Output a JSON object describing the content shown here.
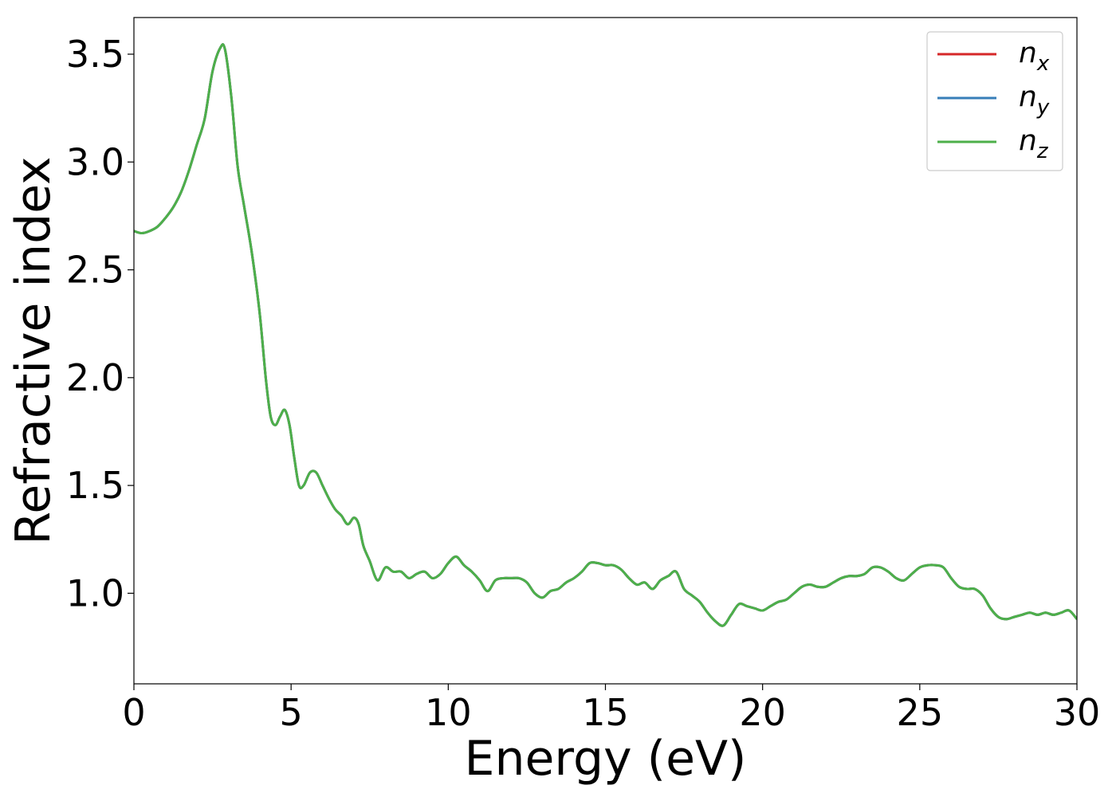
{
  "chart_data": {
    "type": "line",
    "xlabel": "Energy (eV)",
    "ylabel": "Refractive index",
    "xlim": [
      0,
      30
    ],
    "ylim": [
      0.58,
      3.67
    ],
    "xticks": [
      0,
      5,
      10,
      15,
      20,
      25,
      30
    ],
    "xtick_labels": [
      "0",
      "5",
      "10",
      "15",
      "20",
      "25",
      "30"
    ],
    "yticks": [
      1.0,
      1.5,
      2.0,
      2.5,
      3.0,
      3.5
    ],
    "ytick_labels": [
      "1.0",
      "1.5",
      "2.0",
      "2.5",
      "3.0",
      "3.5"
    ],
    "grid": false,
    "legend_position": "top-right",
    "x": [
      0.0,
      0.25,
      0.5,
      0.75,
      1.0,
      1.25,
      1.5,
      1.75,
      2.0,
      2.25,
      2.5,
      2.75,
      2.9,
      3.1,
      3.3,
      3.5,
      3.75,
      4.0,
      4.2,
      4.35,
      4.5,
      4.65,
      4.8,
      4.95,
      5.1,
      5.25,
      5.4,
      5.6,
      5.8,
      6.0,
      6.2,
      6.4,
      6.6,
      6.8,
      7.0,
      7.15,
      7.3,
      7.5,
      7.75,
      8.0,
      8.25,
      8.5,
      8.75,
      9.0,
      9.25,
      9.5,
      9.75,
      10.0,
      10.25,
      10.5,
      10.75,
      11.0,
      11.25,
      11.5,
      11.75,
      12.0,
      12.25,
      12.5,
      12.75,
      13.0,
      13.25,
      13.5,
      13.75,
      14.0,
      14.25,
      14.5,
      14.75,
      15.0,
      15.25,
      15.5,
      15.75,
      16.0,
      16.25,
      16.5,
      16.75,
      17.0,
      17.25,
      17.5,
      17.75,
      18.0,
      18.25,
      18.5,
      18.75,
      19.0,
      19.25,
      19.5,
      19.75,
      20.0,
      20.25,
      20.5,
      20.75,
      21.0,
      21.25,
      21.5,
      21.75,
      22.0,
      22.25,
      22.5,
      22.75,
      23.0,
      23.25,
      23.5,
      23.75,
      24.0,
      24.25,
      24.5,
      24.75,
      25.0,
      25.25,
      25.5,
      25.75,
      26.0,
      26.25,
      26.5,
      26.75,
      27.0,
      27.25,
      27.5,
      27.75,
      28.0,
      28.25,
      28.5,
      28.75,
      29.0,
      29.25,
      29.5,
      29.75,
      30.0
    ],
    "series": [
      {
        "name": "n_x",
        "label_main": "n",
        "label_sub": "x",
        "color": "#d62728",
        "values": [
          2.68,
          2.67,
          2.68,
          2.7,
          2.74,
          2.79,
          2.86,
          2.96,
          3.08,
          3.2,
          3.42,
          3.53,
          3.52,
          3.3,
          2.98,
          2.8,
          2.58,
          2.3,
          1.99,
          1.82,
          1.78,
          1.82,
          1.85,
          1.78,
          1.63,
          1.5,
          1.5,
          1.56,
          1.56,
          1.5,
          1.44,
          1.39,
          1.36,
          1.32,
          1.35,
          1.32,
          1.22,
          1.15,
          1.06,
          1.12,
          1.1,
          1.1,
          1.07,
          1.09,
          1.1,
          1.07,
          1.09,
          1.14,
          1.17,
          1.13,
          1.1,
          1.06,
          1.01,
          1.06,
          1.07,
          1.07,
          1.07,
          1.05,
          1.0,
          0.98,
          1.01,
          1.02,
          1.05,
          1.07,
          1.1,
          1.14,
          1.14,
          1.13,
          1.13,
          1.11,
          1.07,
          1.04,
          1.05,
          1.02,
          1.06,
          1.08,
          1.1,
          1.02,
          0.99,
          0.96,
          0.91,
          0.87,
          0.85,
          0.9,
          0.95,
          0.94,
          0.93,
          0.92,
          0.94,
          0.96,
          0.97,
          1.0,
          1.03,
          1.04,
          1.03,
          1.03,
          1.05,
          1.07,
          1.08,
          1.08,
          1.09,
          1.12,
          1.12,
          1.1,
          1.07,
          1.06,
          1.09,
          1.12,
          1.13,
          1.13,
          1.12,
          1.07,
          1.03,
          1.02,
          1.02,
          0.99,
          0.93,
          0.89,
          0.88,
          0.89,
          0.9,
          0.91,
          0.9,
          0.91,
          0.9,
          0.91,
          0.92,
          0.88
        ]
      },
      {
        "name": "n_y",
        "label_main": "n",
        "label_sub": "y",
        "color": "#377eb8",
        "values": [
          2.68,
          2.67,
          2.68,
          2.7,
          2.74,
          2.79,
          2.86,
          2.96,
          3.08,
          3.2,
          3.42,
          3.53,
          3.52,
          3.3,
          2.98,
          2.8,
          2.58,
          2.3,
          1.99,
          1.82,
          1.78,
          1.82,
          1.85,
          1.78,
          1.63,
          1.5,
          1.5,
          1.56,
          1.56,
          1.5,
          1.44,
          1.39,
          1.36,
          1.32,
          1.35,
          1.32,
          1.22,
          1.15,
          1.06,
          1.12,
          1.1,
          1.1,
          1.07,
          1.09,
          1.1,
          1.07,
          1.09,
          1.14,
          1.17,
          1.13,
          1.1,
          1.06,
          1.01,
          1.06,
          1.07,
          1.07,
          1.07,
          1.05,
          1.0,
          0.98,
          1.01,
          1.02,
          1.05,
          1.07,
          1.1,
          1.14,
          1.14,
          1.13,
          1.13,
          1.11,
          1.07,
          1.04,
          1.05,
          1.02,
          1.06,
          1.08,
          1.1,
          1.02,
          0.99,
          0.96,
          0.91,
          0.87,
          0.85,
          0.9,
          0.95,
          0.94,
          0.93,
          0.92,
          0.94,
          0.96,
          0.97,
          1.0,
          1.03,
          1.04,
          1.03,
          1.03,
          1.05,
          1.07,
          1.08,
          1.08,
          1.09,
          1.12,
          1.12,
          1.1,
          1.07,
          1.06,
          1.09,
          1.12,
          1.13,
          1.13,
          1.12,
          1.07,
          1.03,
          1.02,
          1.02,
          0.99,
          0.93,
          0.89,
          0.88,
          0.89,
          0.9,
          0.91,
          0.9,
          0.91,
          0.9,
          0.91,
          0.92,
          0.88
        ]
      },
      {
        "name": "n_z",
        "label_main": "n",
        "label_sub": "z",
        "color": "#4daf4a",
        "values": [
          2.68,
          2.67,
          2.68,
          2.7,
          2.74,
          2.79,
          2.86,
          2.96,
          3.08,
          3.2,
          3.42,
          3.53,
          3.52,
          3.3,
          2.98,
          2.8,
          2.58,
          2.3,
          1.99,
          1.82,
          1.78,
          1.82,
          1.85,
          1.78,
          1.63,
          1.5,
          1.5,
          1.56,
          1.56,
          1.5,
          1.44,
          1.39,
          1.36,
          1.32,
          1.35,
          1.32,
          1.22,
          1.15,
          1.06,
          1.12,
          1.1,
          1.1,
          1.07,
          1.09,
          1.1,
          1.07,
          1.09,
          1.14,
          1.17,
          1.13,
          1.1,
          1.06,
          1.01,
          1.06,
          1.07,
          1.07,
          1.07,
          1.05,
          1.0,
          0.98,
          1.01,
          1.02,
          1.05,
          1.07,
          1.1,
          1.14,
          1.14,
          1.13,
          1.13,
          1.11,
          1.07,
          1.04,
          1.05,
          1.02,
          1.06,
          1.08,
          1.1,
          1.02,
          0.99,
          0.96,
          0.91,
          0.87,
          0.85,
          0.9,
          0.95,
          0.94,
          0.93,
          0.92,
          0.94,
          0.96,
          0.97,
          1.0,
          1.03,
          1.04,
          1.03,
          1.03,
          1.05,
          1.07,
          1.08,
          1.08,
          1.09,
          1.12,
          1.12,
          1.1,
          1.07,
          1.06,
          1.09,
          1.12,
          1.13,
          1.13,
          1.12,
          1.07,
          1.03,
          1.02,
          1.02,
          0.99,
          0.93,
          0.89,
          0.88,
          0.89,
          0.9,
          0.91,
          0.9,
          0.91,
          0.9,
          0.91,
          0.92,
          0.88
        ]
      }
    ]
  }
}
